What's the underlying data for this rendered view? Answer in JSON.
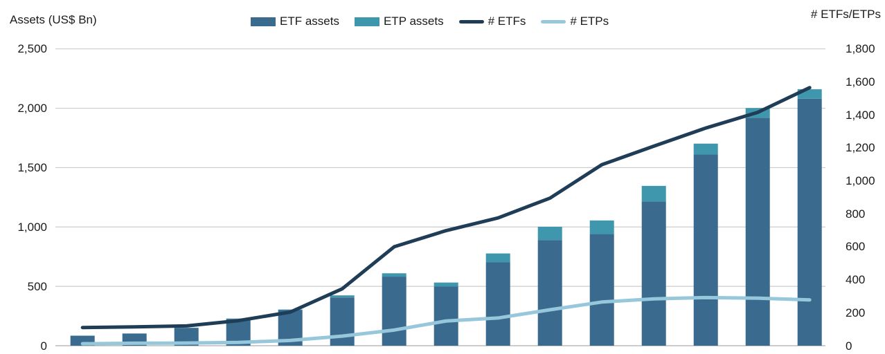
{
  "header": {
    "left_axis_title": "Assets (US$ Bn)",
    "right_axis_title": "# ETFs/ETPs"
  },
  "legend": {
    "position": "top-center",
    "items": [
      {
        "label": "ETF assets",
        "swatch": "bar",
        "color": "#3B6A8F"
      },
      {
        "label": "ETP assets",
        "swatch": "bar",
        "color": "#3E97AC"
      },
      {
        "label": "# ETFs",
        "swatch": "line",
        "color": "#1F3D56"
      },
      {
        "label": "# ETPs",
        "swatch": "line",
        "color": "#96C7DB"
      }
    ]
  },
  "left_axis": {
    "title": "Assets (US$ Bn)",
    "tick_labels_top_to_bottom": [
      "2,500",
      "2,000",
      "1,500",
      "1,000",
      "500",
      "0"
    ],
    "range": [
      0,
      2500
    ],
    "tick_step": 500
  },
  "right_axis": {
    "title": "# ETFs/ETPs",
    "tick_labels_top_to_bottom": [
      "1,800",
      "1,600",
      "1,400",
      "1,200",
      "1,000",
      "800",
      "600",
      "400",
      "200",
      "0"
    ],
    "range": [
      0,
      1800
    ],
    "tick_step": 200
  },
  "chart_data": {
    "type": "combo: stacked bar + line, dual axis",
    "n_points": 15,
    "x_tick_labels_visible": false,
    "x_note": "15 consecutive periods; year labels are cropped out of the screenshot",
    "grid": "horizontal gridlines at left-axis steps of 500",
    "legend_position": "top",
    "bar_series": [
      {
        "name": "ETF assets",
        "axis": "left",
        "unit": "US$ Bn",
        "color": "#3B6A8F",
        "values": [
          84,
          102,
          150,
          226,
          300,
          406,
          582,
          498,
          704,
          890,
          940,
          1215,
          1610,
          1920,
          2080
        ]
      },
      {
        "name": "ETP assets",
        "axis": "left",
        "unit": "US$ Bn",
        "color": "#3E97AC",
        "stacked_on": "ETF assets",
        "values": [
          1,
          1,
          2,
          3,
          5,
          18,
          28,
          34,
          73,
          112,
          115,
          131,
          92,
          82,
          80
        ]
      }
    ],
    "bar_totals": [
      85,
      103,
      152,
      229,
      305,
      424,
      610,
      532,
      777,
      1002,
      1055,
      1346,
      1702,
      2002,
      2160
    ],
    "line_series": [
      {
        "name": "# ETFs",
        "axis": "right",
        "color": "#1F3D56",
        "values": [
          110,
          114,
          120,
          152,
          204,
          345,
          600,
          698,
          775,
          895,
          1098,
          1210,
          1320,
          1415,
          1565
        ]
      },
      {
        "name": "# ETPs",
        "axis": "right",
        "color": "#96C7DB",
        "values": [
          12,
          15,
          16,
          20,
          32,
          58,
          95,
          150,
          168,
          218,
          265,
          284,
          292,
          288,
          278
        ]
      }
    ],
    "left_axis_range": [
      0,
      2500
    ],
    "right_axis_range": [
      0,
      1800
    ],
    "colors": {
      "gridline": "#CCCCCC",
      "baseline": "#ADADAD",
      "text": "#1A1A1A",
      "background": "#FFFFFF"
    }
  }
}
